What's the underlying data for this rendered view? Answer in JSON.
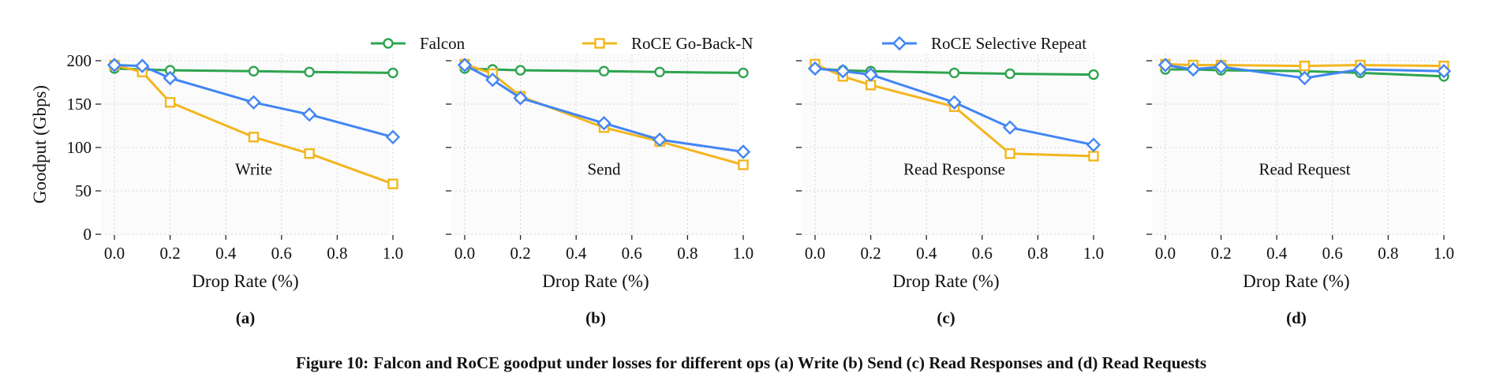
{
  "legend": [
    {
      "name": "Falcon",
      "color": "#2ea44f",
      "marker": "circle"
    },
    {
      "name": "RoCE Go-Back-N",
      "color": "#f3b61f",
      "marker": "square"
    },
    {
      "name": "RoCE Selective Repeat",
      "color": "#4285f4",
      "marker": "diamond"
    }
  ],
  "caption": {
    "label": "Figure 10:",
    "text": "Falcon and RoCE goodput under losses for different ops (a) Write (b) Send (c) Read Responses and (d) Read Requests"
  },
  "chart_data": [
    {
      "type": "line",
      "panel_label": "(a)",
      "annotation": "Write",
      "xlabel": "Drop Rate (%)",
      "ylabel": "Goodput (Gbps)",
      "xlim": [
        0,
        1.0
      ],
      "ylim": [
        0,
        200
      ],
      "xticks": [
        "0.0",
        "0.2",
        "0.4",
        "0.6",
        "0.8",
        "1.0"
      ],
      "yticks": [
        "0",
        "50",
        "100",
        "150",
        "200"
      ],
      "x": [
        0,
        0.1,
        0.2,
        0.5,
        0.7,
        1.0
      ],
      "grid": true,
      "series": [
        {
          "name": "Falcon",
          "values": [
            191,
            190,
            189,
            188,
            187,
            186
          ]
        },
        {
          "name": "RoCE Go-Back-N",
          "values": [
            195,
            187,
            152,
            112,
            93,
            58
          ]
        },
        {
          "name": "RoCE Selective Repeat",
          "values": [
            195,
            194,
            180,
            152,
            138,
            112
          ]
        }
      ]
    },
    {
      "type": "line",
      "panel_label": "(b)",
      "annotation": "Send",
      "xlabel": "Drop Rate (%)",
      "ylabel": "",
      "xlim": [
        0,
        1.0
      ],
      "ylim": [
        0,
        200
      ],
      "xticks": [
        "0.0",
        "0.2",
        "0.4",
        "0.6",
        "0.8",
        "1.0"
      ],
      "yticks": [
        "0",
        "50",
        "100",
        "150",
        "200"
      ],
      "x": [
        0,
        0.1,
        0.2,
        0.5,
        0.7,
        1.0
      ],
      "grid": true,
      "series": [
        {
          "name": "Falcon",
          "values": [
            191,
            190,
            189,
            188,
            187,
            186
          ]
        },
        {
          "name": "RoCE Go-Back-N",
          "values": [
            196,
            185,
            159,
            123,
            107,
            80
          ]
        },
        {
          "name": "RoCE Selective Repeat",
          "values": [
            195,
            178,
            157,
            128,
            109,
            95
          ]
        }
      ]
    },
    {
      "type": "line",
      "panel_label": "(c)",
      "annotation": "Read Response",
      "xlabel": "Drop Rate (%)",
      "ylabel": "",
      "xlim": [
        0,
        1.0
      ],
      "ylim": [
        0,
        200
      ],
      "xticks": [
        "0.0",
        "0.2",
        "0.4",
        "0.6",
        "0.8",
        "1.0"
      ],
      "yticks": [
        "0",
        "50",
        "100",
        "150",
        "200"
      ],
      "x": [
        0,
        0.1,
        0.2,
        0.5,
        0.7,
        1.0
      ],
      "grid": true,
      "series": [
        {
          "name": "Falcon",
          "values": [
            191,
            189,
            188,
            186,
            185,
            184
          ]
        },
        {
          "name": "RoCE Go-Back-N",
          "values": [
            196,
            182,
            172,
            147,
            93,
            90
          ]
        },
        {
          "name": "RoCE Selective Repeat",
          "values": [
            191,
            188,
            184,
            152,
            123,
            103
          ]
        }
      ]
    },
    {
      "type": "line",
      "panel_label": "(d)",
      "annotation": "Read Request",
      "xlabel": "Drop Rate (%)",
      "ylabel": "",
      "xlim": [
        0,
        1.0
      ],
      "ylim": [
        0,
        200
      ],
      "xticks": [
        "0.0",
        "0.2",
        "0.4",
        "0.6",
        "0.8",
        "1.0"
      ],
      "yticks": [
        "0",
        "50",
        "100",
        "150",
        "200"
      ],
      "x": [
        0,
        0.1,
        0.2,
        0.5,
        0.7,
        1.0
      ],
      "grid": true,
      "series": [
        {
          "name": "Falcon",
          "values": [
            190,
            190,
            189,
            188,
            186,
            182
          ]
        },
        {
          "name": "RoCE Go-Back-N",
          "values": [
            196,
            195,
            195,
            194,
            195,
            194
          ]
        },
        {
          "name": "RoCE Selective Repeat",
          "values": [
            195,
            190,
            193,
            180,
            190,
            188
          ]
        }
      ]
    }
  ]
}
